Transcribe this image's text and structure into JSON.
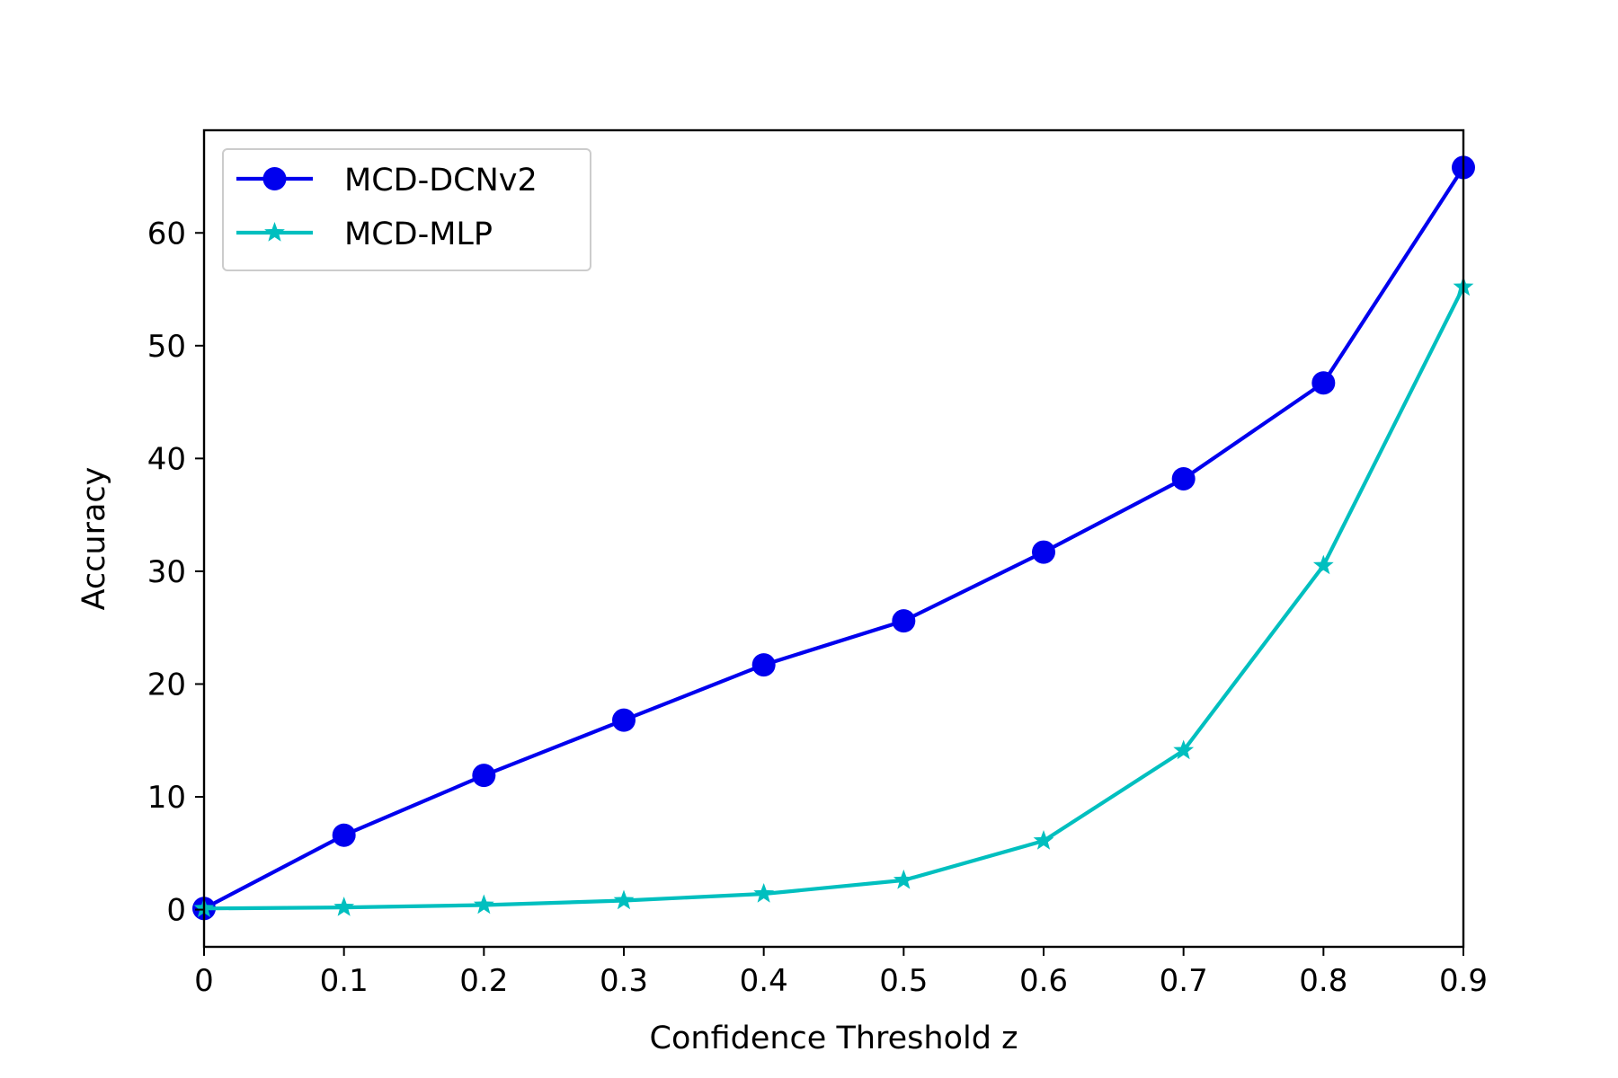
{
  "chart_data": {
    "type": "line",
    "title": "",
    "xlabel": "Confidence Threshold z",
    "ylabel": "Accuracy",
    "xlim": [
      0,
      0.9
    ],
    "ylim": [
      -3.3,
      69.1
    ],
    "x": [
      0,
      0.1,
      0.2,
      0.3,
      0.4,
      0.5,
      0.6,
      0.7,
      0.8,
      0.9
    ],
    "xticks": [
      0,
      0.1,
      0.2,
      0.3,
      0.4,
      0.5,
      0.6,
      0.7,
      0.8,
      0.9
    ],
    "xtick_labels": [
      "0",
      "0.1",
      "0.2",
      "0.3",
      "0.4",
      "0.5",
      "0.6",
      "0.7",
      "0.8",
      "0.9"
    ],
    "yticks": [
      0,
      10,
      20,
      30,
      40,
      50,
      60
    ],
    "ytick_labels": [
      "0",
      "10",
      "20",
      "30",
      "40",
      "50",
      "60"
    ],
    "grid": false,
    "legend_position": "top-left",
    "series": [
      {
        "name": "MCD-DCNv2",
        "color": "#0000ee",
        "marker": "circle",
        "values": [
          0.1,
          6.6,
          11.9,
          16.8,
          21.7,
          25.6,
          31.7,
          38.2,
          46.7,
          65.8
        ]
      },
      {
        "name": "MCD-MLP",
        "color": "#00bfbf",
        "marker": "star",
        "values": [
          0.1,
          0.2,
          0.4,
          0.8,
          1.4,
          2.6,
          6.1,
          14.1,
          30.5,
          55.2
        ]
      }
    ]
  }
}
